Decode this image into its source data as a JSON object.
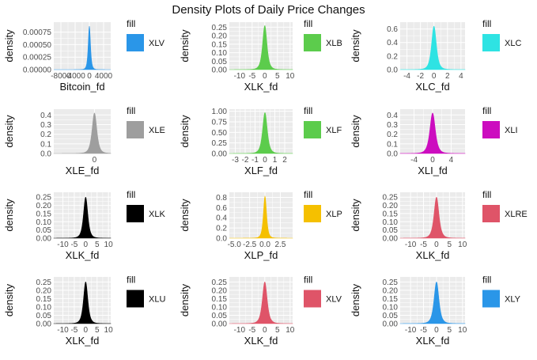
{
  "title": "Density Plots of Daily Price Changes",
  "legend_title": "fill",
  "ylabel": "density",
  "colors": {
    "panel_bg": "#ebebeb",
    "gridline": "#ffffff",
    "tick_text": "#4d4d4d"
  },
  "chart_data": [
    {
      "type": "area",
      "xlabel": "Bitcoin_fd",
      "ylabel": "density",
      "fill": "XLV",
      "color": "#2a96e8",
      "xlim": [
        -10000,
        6000
      ],
      "x_ticks": [
        -8000,
        -4000,
        0,
        4000
      ],
      "x_tick_labels": [
        "-8000",
        "-4000",
        "0",
        "4000"
      ],
      "ylim": [
        0,
        0.00095
      ],
      "y_ticks": [
        0,
        0.00025,
        0.0005,
        0.00075
      ],
      "y_tick_labels": [
        "0.00000",
        "0.00025",
        "0.00050",
        "0.00075"
      ],
      "center": 0,
      "scale": 400,
      "peak": 0.00087
    },
    {
      "type": "area",
      "xlabel": "XLK_fd",
      "ylabel": "density",
      "fill": "XLB",
      "color": "#5ccc4c",
      "xlim": [
        -14,
        11
      ],
      "x_ticks": [
        -10,
        -5,
        0,
        5,
        10
      ],
      "x_tick_labels": [
        "-10",
        "-5",
        "0",
        "5",
        "10"
      ],
      "ylim": [
        0,
        0.28
      ],
      "y_ticks": [
        0,
        0.05,
        0.1,
        0.15,
        0.2,
        0.25
      ],
      "y_tick_labels": [
        "0.00",
        "0.05",
        "0.10",
        "0.15",
        "0.20",
        "0.25"
      ],
      "center": 0,
      "scale": 1.1,
      "peak": 0.26
    },
    {
      "type": "area",
      "xlabel": "XLC_fd",
      "ylabel": "density",
      "fill": "XLC",
      "color": "#2ee3e3",
      "xlim": [
        -5,
        4.6
      ],
      "x_ticks": [
        -4,
        -2,
        0,
        2,
        4
      ],
      "x_tick_labels": [
        "-4",
        "-2",
        "0",
        "2",
        "4"
      ],
      "ylim": [
        0,
        0.7
      ],
      "y_ticks": [
        0,
        0.2,
        0.4,
        0.6
      ],
      "y_tick_labels": [
        "0.0",
        "0.2",
        "0.4",
        "0.6"
      ],
      "center": 0,
      "scale": 0.45,
      "peak": 0.64
    },
    {
      "type": "area",
      "xlabel": "XLE_fd",
      "ylabel": "density",
      "fill": "XLE",
      "color": "#9e9e9e",
      "xlim": [
        -10,
        4
      ],
      "x_ticks": [
        0
      ],
      "x_tick_labels": [
        "0"
      ],
      "ylim": [
        0,
        0.46
      ],
      "y_ticks": [
        0,
        0.1,
        0.2,
        0.3,
        0.4
      ],
      "y_tick_labels": [
        "0.0",
        "0.1",
        "0.2",
        "0.3",
        "0.4"
      ],
      "center": 0,
      "scale": 0.75,
      "peak": 0.42
    },
    {
      "type": "area",
      "xlabel": "XLF_fd",
      "ylabel": "density",
      "fill": "XLF",
      "color": "#5ccc4c",
      "xlim": [
        -3.6,
        2.8
      ],
      "x_ticks": [
        -3,
        -2,
        -1,
        0,
        1,
        2
      ],
      "x_tick_labels": [
        "-3",
        "-2",
        "-1",
        "0",
        "1",
        "2"
      ],
      "ylim": [
        0,
        1.05
      ],
      "y_ticks": [
        0,
        0.25,
        0.5,
        0.75,
        1
      ],
      "y_tick_labels": [
        "0.00",
        "0.25",
        "0.50",
        "0.75",
        "1.00"
      ],
      "center": 0,
      "scale": 0.3,
      "peak": 0.97
    },
    {
      "type": "area",
      "xlabel": "XLI_fd",
      "ylabel": "density",
      "fill": "XLI",
      "color": "#cc0dbf",
      "xlim": [
        -7,
        7
      ],
      "x_ticks": [
        -4,
        0,
        4
      ],
      "x_tick_labels": [
        "-4",
        "0",
        "4"
      ],
      "ylim": [
        0,
        0.46
      ],
      "y_ticks": [
        0,
        0.1,
        0.2,
        0.3,
        0.4
      ],
      "y_tick_labels": [
        "0.0",
        "0.1",
        "0.2",
        "0.3",
        "0.4"
      ],
      "center": 0,
      "scale": 0.75,
      "peak": 0.42
    },
    {
      "type": "area",
      "xlabel": "XLK_fd",
      "ylabel": "density",
      "fill": "XLK",
      "color": "#000000",
      "xlim": [
        -14,
        11
      ],
      "x_ticks": [
        -10,
        -5,
        0,
        5,
        10
      ],
      "x_tick_labels": [
        "-10",
        "-5",
        "0",
        "5",
        "10"
      ],
      "ylim": [
        0,
        0.28
      ],
      "y_ticks": [
        0,
        0.05,
        0.1,
        0.15,
        0.2,
        0.25
      ],
      "y_tick_labels": [
        "0.00",
        "0.05",
        "0.10",
        "0.15",
        "0.20",
        "0.25"
      ],
      "center": 0,
      "scale": 1.2,
      "peak": 0.25
    },
    {
      "type": "area",
      "xlabel": "XLP_fd",
      "ylabel": "density",
      "fill": "XLP",
      "color": "#f5c000",
      "xlim": [
        -5.8,
        4.5
      ],
      "x_ticks": [
        -5,
        -2.5,
        0,
        2.5
      ],
      "x_tick_labels": [
        "-5.0",
        "-2.5",
        "0.0",
        "2.5"
      ],
      "ylim": [
        0,
        0.9
      ],
      "y_ticks": [
        0,
        0.2,
        0.4,
        0.6,
        0.8
      ],
      "y_tick_labels": [
        "0.0",
        "0.2",
        "0.4",
        "0.6",
        "0.8"
      ],
      "center": 0,
      "scale": 0.33,
      "peak": 0.82
    },
    {
      "type": "area",
      "xlabel": "XLK_fd",
      "ylabel": "density",
      "fill": "XLRE",
      "color": "#df5468",
      "xlim": [
        -14,
        11
      ],
      "x_ticks": [
        -10,
        -5,
        0,
        5,
        10
      ],
      "x_tick_labels": [
        "-10",
        "-5",
        "0",
        "5",
        "10"
      ],
      "ylim": [
        0,
        0.28
      ],
      "y_ticks": [
        0,
        0.05,
        0.1,
        0.15,
        0.2,
        0.25
      ],
      "y_tick_labels": [
        "0.00",
        "0.05",
        "0.10",
        "0.15",
        "0.20",
        "0.25"
      ],
      "center": 0,
      "scale": 1.2,
      "peak": 0.25
    },
    {
      "type": "area",
      "xlabel": "XLK_fd",
      "ylabel": "density",
      "fill": "XLU",
      "color": "#000000",
      "xlim": [
        -14,
        11
      ],
      "x_ticks": [
        -10,
        -5,
        0,
        5,
        10
      ],
      "x_tick_labels": [
        "-10",
        "-5",
        "0",
        "5",
        "10"
      ],
      "ylim": [
        0,
        0.28
      ],
      "y_ticks": [
        0,
        0.05,
        0.1,
        0.15,
        0.2,
        0.25
      ],
      "y_tick_labels": [
        "0.00",
        "0.05",
        "0.10",
        "0.15",
        "0.20",
        "0.25"
      ],
      "center": 0,
      "scale": 1.2,
      "peak": 0.25
    },
    {
      "type": "area",
      "xlabel": "XLK_fd",
      "ylabel": "density",
      "fill": "XLV",
      "color": "#df5468",
      "xlim": [
        -14,
        11
      ],
      "x_ticks": [
        -10,
        -5,
        0,
        5,
        10
      ],
      "x_tick_labels": [
        "-10",
        "-5",
        "0",
        "5",
        "10"
      ],
      "ylim": [
        0,
        0.28
      ],
      "y_ticks": [
        0,
        0.05,
        0.1,
        0.15,
        0.2,
        0.25
      ],
      "y_tick_labels": [
        "0.00",
        "0.05",
        "0.10",
        "0.15",
        "0.20",
        "0.25"
      ],
      "center": 0,
      "scale": 1.2,
      "peak": 0.25
    },
    {
      "type": "area",
      "xlabel": "XLK_fd",
      "ylabel": "density",
      "fill": "XLY",
      "color": "#2a96e8",
      "xlim": [
        -14,
        11
      ],
      "x_ticks": [
        -10,
        -5,
        0,
        5,
        10
      ],
      "x_tick_labels": [
        "-10",
        "-5",
        "0",
        "5",
        "10"
      ],
      "ylim": [
        0,
        0.28
      ],
      "y_ticks": [
        0,
        0.05,
        0.1,
        0.15,
        0.2,
        0.25
      ],
      "y_tick_labels": [
        "0.00",
        "0.05",
        "0.10",
        "0.15",
        "0.20",
        "0.25"
      ],
      "center": 0,
      "scale": 1.2,
      "peak": 0.25
    }
  ]
}
